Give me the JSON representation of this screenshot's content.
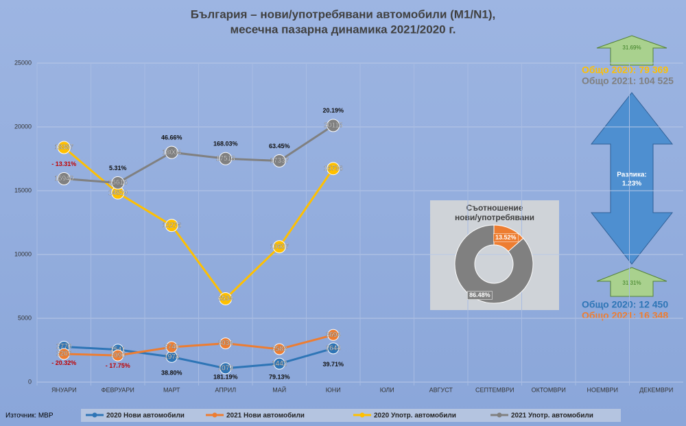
{
  "chart_data": {
    "type": "line",
    "title": [
      "България – нови/употребявани автомобили (M1/N1),",
      "месечна пазарна динамика 2021/2020 г."
    ],
    "categories": [
      "ЯНУАРИ",
      "ФЕВРУАРИ",
      "МАРТ",
      "АПРИЛ",
      "МАЙ",
      "ЮНИ",
      "ЮЛИ",
      "АВГУСТ",
      "СЕПТЕМВРИ",
      "ОКТОМВРИ",
      "НОЕМВРИ",
      "ДЕКЕМВРИ"
    ],
    "series": [
      {
        "name": "2020 Нови автомобили",
        "color": "#2e75b6",
        "values": [
          2770,
          2541,
          1974,
          1079,
          1442,
          2644,
          null,
          null,
          null,
          null,
          null,
          null
        ]
      },
      {
        "name": "2021 Нови автомобили",
        "color": "#ed7d31",
        "values": [
          2207,
          2090,
          2740,
          3034,
          2583,
          3694,
          null,
          null,
          null,
          null,
          null,
          null
        ]
      },
      {
        "name": "2020 Употр. автомобили",
        "color": "#ffc000",
        "values": [
          18387,
          14829,
          12276,
          6534,
          10607,
          16736,
          null,
          null,
          null,
          null,
          null,
          null
        ]
      },
      {
        "name": "2021 Употр. автомобили",
        "color": "#808080",
        "values": [
          15940,
          15616,
          18004,
          17513,
          17337,
          20115,
          null,
          null,
          null,
          null,
          null,
          null
        ]
      }
    ],
    "ylim": [
      0,
      25000
    ],
    "yticks": [
      0,
      5000,
      10000,
      15000,
      20000,
      25000
    ],
    "grid": true,
    "used_change_labels": [
      "- 13.31%",
      "5.31%",
      "46.66%",
      "168.03%",
      "63.45%",
      "20.19%"
    ],
    "new_change_labels": [
      "- 20.32%",
      "- 17.75%",
      "38.80%",
      "181.19%",
      "79.13%",
      "39.71%"
    ],
    "pie": {
      "type": "pie",
      "title": [
        "Съотношение",
        "нови/употребявани"
      ],
      "values": [
        13.52,
        86.48
      ],
      "value_labels": [
        "13.52%",
        "86.48%"
      ],
      "colors": [
        "#ed7d31",
        "#808080"
      ]
    },
    "totals_used": [
      "Общо 2020: 79 369",
      "Общо 2021: 104 525"
    ],
    "totals_new": [
      "Общо 2020: 12 450",
      "Общо 2021: 16 348"
    ],
    "used_growth": "31.69%",
    "new_growth": "31.31%",
    "difference": [
      "Разлика:",
      "1.23%"
    ],
    "source": "Източник: МВР"
  }
}
